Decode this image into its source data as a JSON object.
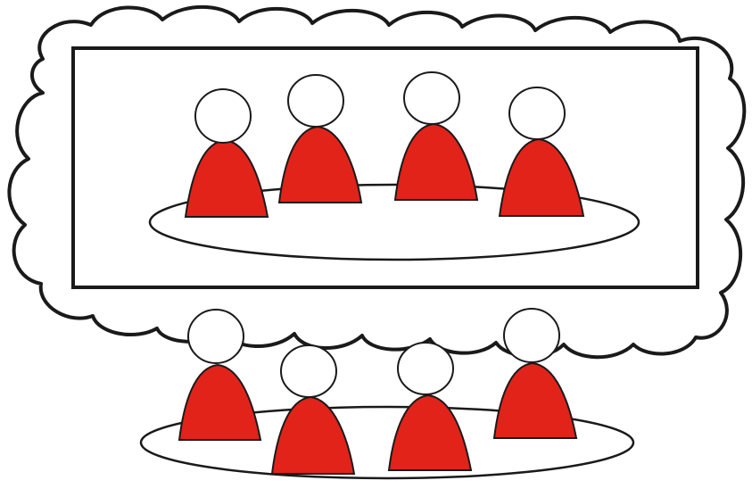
{
  "colors": {
    "background": "#ffffff",
    "outline": "#1a1a1a",
    "person_body": "#e2231a",
    "person_head": "#ffffff",
    "table": "#ffffff",
    "cloud": "#ffffff"
  },
  "thought": {
    "icon": "thought-cloud-icon",
    "frame_icon": "picture-frame-icon",
    "table_icon": "oval-table-icon",
    "people": [
      {
        "icon": "person-icon"
      },
      {
        "icon": "person-icon"
      },
      {
        "icon": "person-icon"
      },
      {
        "icon": "person-icon"
      }
    ]
  },
  "meeting": {
    "table_icon": "oval-table-icon",
    "people": [
      {
        "icon": "person-icon"
      },
      {
        "icon": "person-icon"
      },
      {
        "icon": "person-icon"
      },
      {
        "icon": "person-icon"
      }
    ]
  }
}
